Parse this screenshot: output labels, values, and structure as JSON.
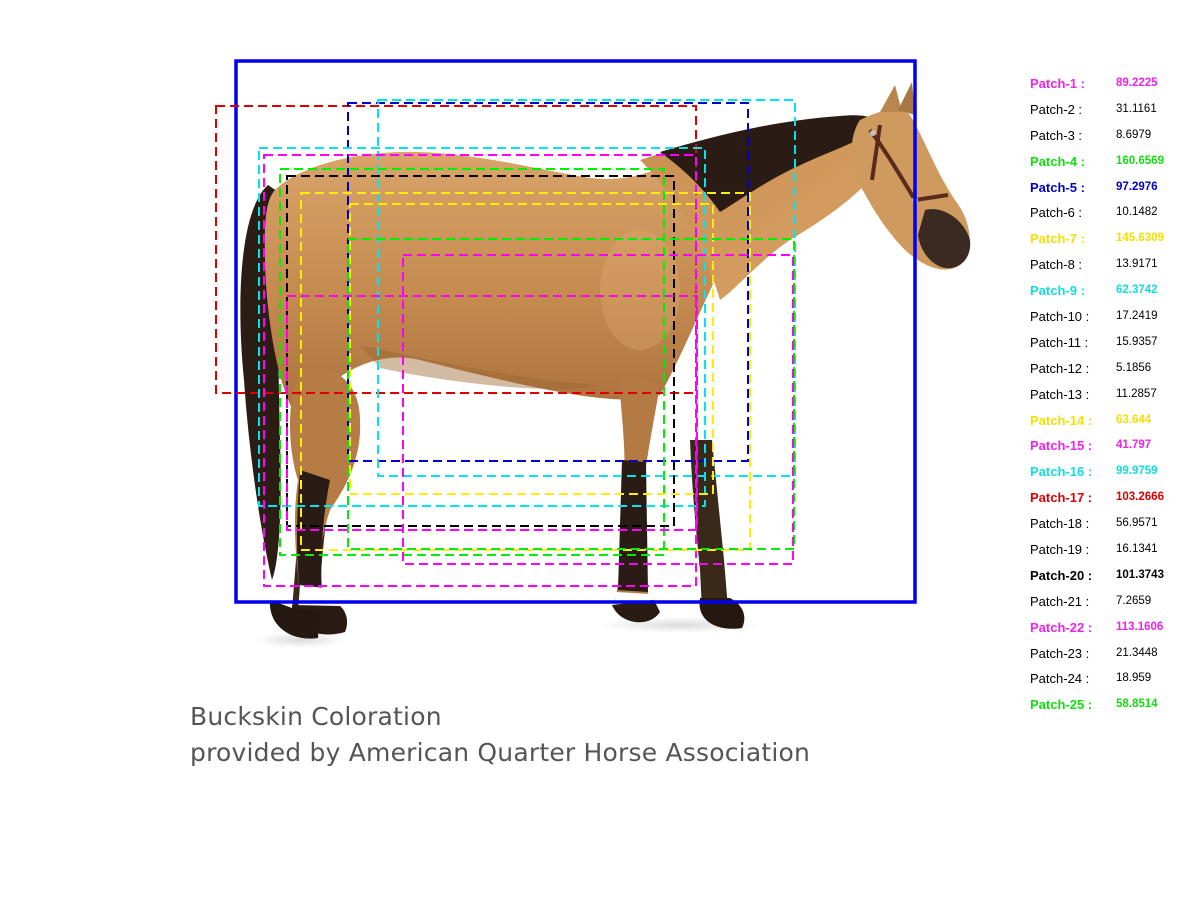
{
  "caption": {
    "line1": "Buckskin Coloration",
    "line2": "provided by American Quarter Horse Association"
  },
  "colors": {
    "magenta": "#ff00ff",
    "black": "#000000",
    "green": "#00ee00",
    "blue": "#0000cc",
    "yellow": "#ffee00",
    "cyan": "#00e5ee",
    "red": "#dd0000",
    "frame": "#0000ee",
    "horse_body": "#c99157",
    "horse_dark": "#2a1c14"
  },
  "patches": [
    {
      "label": "Patch-1 :",
      "value": "89.2225",
      "color": "#ee22ee",
      "highlight": true
    },
    {
      "label": "Patch-2 :",
      "value": "31.1161",
      "color": "#000000",
      "highlight": false
    },
    {
      "label": "Patch-3 :",
      "value": "8.6979",
      "color": "#000000",
      "highlight": false
    },
    {
      "label": "Patch-4 :",
      "value": "160.6569",
      "color": "#11dd11",
      "highlight": true
    },
    {
      "label": "Patch-5 :",
      "value": "97.2976",
      "color": "#0000cc",
      "highlight": true
    },
    {
      "label": "Patch-6 :",
      "value": "10.1482",
      "color": "#000000",
      "highlight": false
    },
    {
      "label": "Patch-7 :",
      "value": "145.6309",
      "color": "#f2e000",
      "highlight": true
    },
    {
      "label": "Patch-8 :",
      "value": "13.9171",
      "color": "#000000",
      "highlight": false
    },
    {
      "label": "Patch-9 :",
      "value": "62.3742",
      "color": "#11dddd",
      "highlight": true
    },
    {
      "label": "Patch-10 :",
      "value": "17.2419",
      "color": "#000000",
      "highlight": false
    },
    {
      "label": "Patch-11 :",
      "value": "15.9357",
      "color": "#000000",
      "highlight": false
    },
    {
      "label": "Patch-12 :",
      "value": "5.1856",
      "color": "#000000",
      "highlight": false
    },
    {
      "label": "Patch-13 :",
      "value": "11.2857",
      "color": "#000000",
      "highlight": false
    },
    {
      "label": "Patch-14 :",
      "value": "63.644",
      "color": "#f2e000",
      "highlight": true
    },
    {
      "label": "Patch-15 :",
      "value": "41.797",
      "color": "#ee22ee",
      "highlight": true
    },
    {
      "label": "Patch-16 :",
      "value": "99.9759",
      "color": "#11dddd",
      "highlight": true
    },
    {
      "label": "Patch-17 :",
      "value": "103.2666",
      "color": "#dd0000",
      "highlight": true
    },
    {
      "label": "Patch-18 :",
      "value": "56.9571",
      "color": "#000000",
      "highlight": false
    },
    {
      "label": "Patch-19 :",
      "value": "16.1341",
      "color": "#000000",
      "highlight": false
    },
    {
      "label": "Patch-20 :",
      "value": "101.3743",
      "color": "#000000",
      "highlight": true
    },
    {
      "label": "Patch-21 :",
      "value": "7.2659",
      "color": "#000000",
      "highlight": false
    },
    {
      "label": "Patch-22 :",
      "value": "113.1606",
      "color": "#ee22ee",
      "highlight": true
    },
    {
      "label": "Patch-23 :",
      "value": "21.3448",
      "color": "#000000",
      "highlight": false
    },
    {
      "label": "Patch-24 :",
      "value": "18.959",
      "color": "#000000",
      "highlight": false
    },
    {
      "label": "Patch-25 :",
      "value": "58.8514",
      "color": "#11dd11",
      "highlight": true
    }
  ]
}
